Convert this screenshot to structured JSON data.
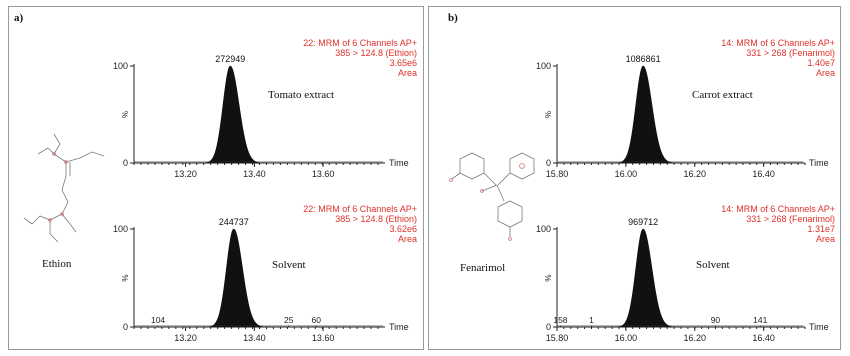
{
  "figure": {
    "panel_a_label": "a)",
    "panel_b_label": "b)",
    "compound_a": "Ethion",
    "compound_b": "Fenarimol"
  },
  "chart_data": [
    {
      "type": "line",
      "panel": "a",
      "position": "top",
      "sample": "Tomato extract",
      "xlabel": "Time",
      "ylabel": "%",
      "xlim": [
        13.05,
        13.78
      ],
      "ylim": [
        0,
        100
      ],
      "x_ticks": [
        13.2,
        13.4,
        13.6
      ],
      "x_tick_labels": [
        "13.20",
        "13.40",
        "13.60"
      ],
      "y_ticks": [
        0,
        100
      ],
      "y_tick_labels": [
        "0",
        "100"
      ],
      "annotation": [
        "22: MRM of 6 Channels AP+",
        "385 > 124.8 (Ethion)",
        "3.65e6",
        "Area"
      ],
      "peak": {
        "x": 13.33,
        "y": 100,
        "label": "272949",
        "sigma": 0.022
      },
      "minor_peaks": []
    },
    {
      "type": "line",
      "panel": "a",
      "position": "bottom",
      "sample": "Solvent",
      "xlabel": "Time",
      "ylabel": "%",
      "xlim": [
        13.05,
        13.78
      ],
      "ylim": [
        0,
        100
      ],
      "x_ticks": [
        13.2,
        13.4,
        13.6
      ],
      "x_tick_labels": [
        "13.20",
        "13.40",
        "13.60"
      ],
      "y_ticks": [
        0,
        100
      ],
      "y_tick_labels": [
        "0",
        "100"
      ],
      "annotation": [
        "22: MRM of 6 Channels AP+",
        "385 > 124.8 (Ethion)",
        "3.62e6",
        "Area"
      ],
      "peak": {
        "x": 13.34,
        "y": 100,
        "label": "244737",
        "sigma": 0.022
      },
      "minor_peaks": [
        {
          "x": 13.12,
          "label": "104"
        },
        {
          "x": 13.5,
          "label": "25"
        },
        {
          "x": 13.58,
          "label": "60"
        }
      ]
    },
    {
      "type": "line",
      "panel": "b",
      "position": "top",
      "sample": "Carrot extract",
      "xlabel": "Time",
      "ylabel": "%",
      "xlim": [
        15.8,
        16.52
      ],
      "ylim": [
        0,
        100
      ],
      "x_ticks": [
        15.8,
        16.0,
        16.2,
        16.4
      ],
      "x_tick_labels": [
        "15.80",
        "16.00",
        "16.20",
        "16.40"
      ],
      "y_ticks": [
        0,
        100
      ],
      "y_tick_labels": [
        "0",
        "100"
      ],
      "annotation": [
        "14: MRM of 6 Channels AP+",
        "331 > 268 (Fenarimol)",
        "1.40e7",
        "Area"
      ],
      "peak": {
        "x": 16.05,
        "y": 100,
        "label": "1086861",
        "sigma": 0.022
      },
      "minor_peaks": []
    },
    {
      "type": "line",
      "panel": "b",
      "position": "bottom",
      "sample": "Solvent",
      "xlabel": "Time",
      "ylabel": "%",
      "xlim": [
        15.8,
        16.52
      ],
      "ylim": [
        0,
        100
      ],
      "x_ticks": [
        15.8,
        16.0,
        16.2,
        16.4
      ],
      "x_tick_labels": [
        "15.80",
        "16.00",
        "16.20",
        "16.40"
      ],
      "y_ticks": [
        0,
        100
      ],
      "y_tick_labels": [
        "0",
        "100"
      ],
      "annotation": [
        "14: MRM of 6 Channels AP+",
        "331 > 268 (Fenarimol)",
        "1.31e7",
        "Area"
      ],
      "peak": {
        "x": 16.05,
        "y": 100,
        "label": "969712",
        "sigma": 0.022
      },
      "minor_peaks": [
        {
          "x": 15.81,
          "label": "158"
        },
        {
          "x": 15.9,
          "label": "1"
        },
        {
          "x": 16.26,
          "label": "90"
        },
        {
          "x": 16.39,
          "label": "141"
        }
      ]
    }
  ]
}
